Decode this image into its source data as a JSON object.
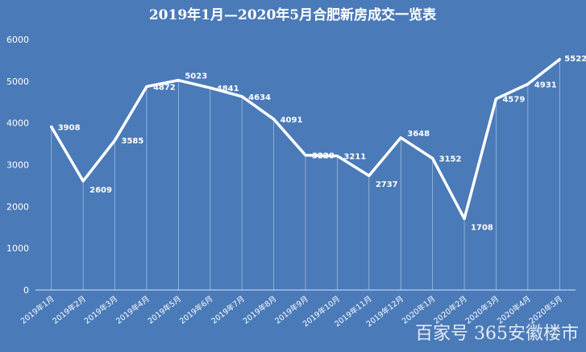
{
  "chart_data": {
    "type": "line",
    "title": "2019年1月—2020年5月合肥新房成交一览表",
    "categories": [
      "2019年1月",
      "2019年2月",
      "2019年3月",
      "2019年4月",
      "2019年5月",
      "2019年6月",
      "2019年7月",
      "2019年8月",
      "2019年9月",
      "2019年10月",
      "2019年11月",
      "2019年12月",
      "2020年1月",
      "2020年2月",
      "2020年3月",
      "2020年4月",
      "2020年5月"
    ],
    "series": [
      {
        "values": [
          3908,
          2609,
          3585,
          4872,
          5023,
          4841,
          4634,
          4091,
          3228,
          3211,
          2737,
          3648,
          3152,
          1708,
          4579,
          4931,
          5522
        ]
      }
    ],
    "ylim": [
      0,
      6000
    ],
    "yticks": [
      "0",
      "1000",
      "2000",
      "3000",
      "4000",
      "5000",
      "6000"
    ],
    "xlabel": "",
    "ylabel": "",
    "grid": "vertical",
    "line_color": "#ffffff"
  },
  "watermark": {
    "text": "百家号 365安徽楼市"
  }
}
